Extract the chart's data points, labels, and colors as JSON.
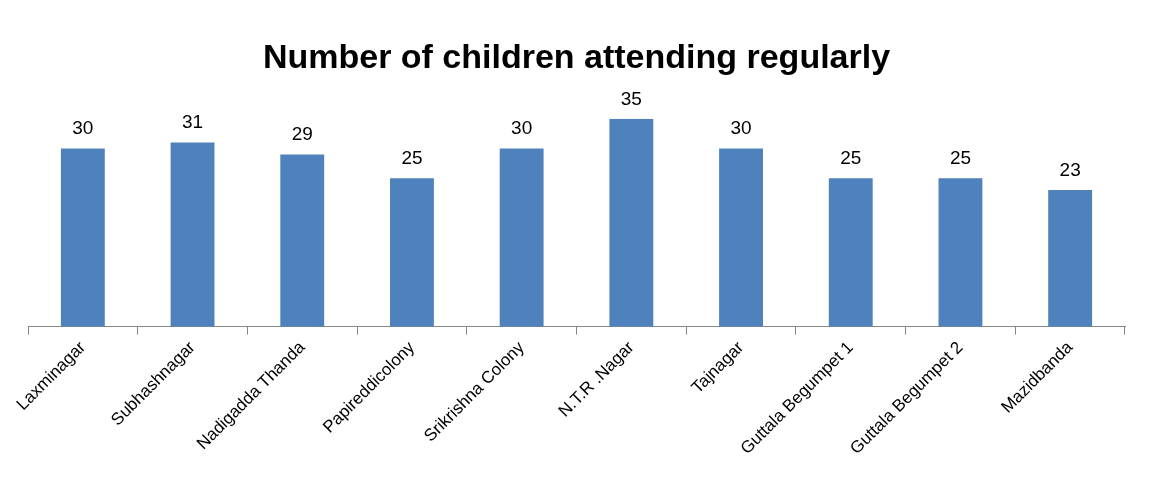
{
  "chart_data": {
    "type": "bar",
    "title": "Number of children attending regularly",
    "categories": [
      "Laxminagar",
      "Subhashnagar",
      "Nadigadda Thanda",
      "Papireddicolony",
      "Srikrishna Colony",
      "N.T.R .Nagar",
      "Tajnagar",
      "Guttala Begumpet 1",
      "Guttala Begumpet 2",
      "Mazidbanda"
    ],
    "values": [
      30,
      31,
      29,
      25,
      30,
      35,
      30,
      25,
      25,
      23
    ],
    "color": "#4f81bd",
    "data_labels": true,
    "grid": false,
    "legend": false
  }
}
